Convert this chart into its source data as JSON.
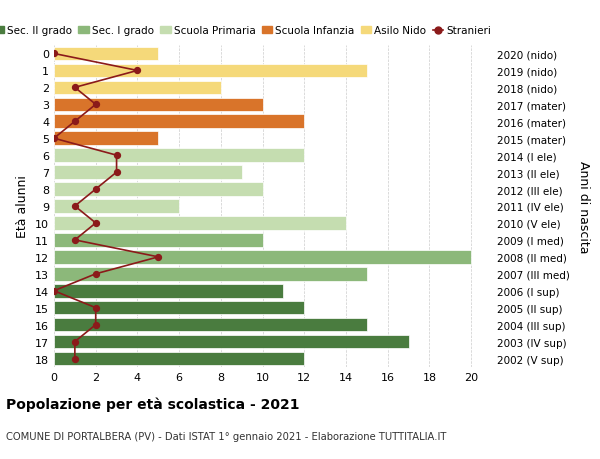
{
  "ages": [
    18,
    17,
    16,
    15,
    14,
    13,
    12,
    11,
    10,
    9,
    8,
    7,
    6,
    5,
    4,
    3,
    2,
    1,
    0
  ],
  "right_labels": [
    "2002 (V sup)",
    "2003 (IV sup)",
    "2004 (III sup)",
    "2005 (II sup)",
    "2006 (I sup)",
    "2007 (III med)",
    "2008 (II med)",
    "2009 (I med)",
    "2010 (V ele)",
    "2011 (IV ele)",
    "2012 (III ele)",
    "2013 (II ele)",
    "2014 (I ele)",
    "2015 (mater)",
    "2016 (mater)",
    "2017 (mater)",
    "2018 (nido)",
    "2019 (nido)",
    "2020 (nido)"
  ],
  "bar_values": [
    12,
    17,
    15,
    12,
    11,
    15,
    20,
    10,
    14,
    6,
    10,
    9,
    12,
    5,
    12,
    10,
    8,
    15,
    5
  ],
  "bar_colors": [
    "#4a7c3f",
    "#4a7c3f",
    "#4a7c3f",
    "#4a7c3f",
    "#4a7c3f",
    "#8cb87a",
    "#8cb87a",
    "#8cb87a",
    "#c5ddb0",
    "#c5ddb0",
    "#c5ddb0",
    "#c5ddb0",
    "#c5ddb0",
    "#d9742a",
    "#d9742a",
    "#d9742a",
    "#f5d97a",
    "#f5d97a",
    "#f5d97a"
  ],
  "stranieri_values": [
    1,
    1,
    2,
    2,
    0,
    2,
    5,
    1,
    2,
    1,
    2,
    3,
    3,
    0,
    1,
    2,
    1,
    4,
    0
  ],
  "legend_labels": [
    "Sec. II grado",
    "Sec. I grado",
    "Scuola Primaria",
    "Scuola Infanzia",
    "Asilo Nido",
    "Stranieri"
  ],
  "legend_colors": [
    "#4a7c3f",
    "#8cb87a",
    "#c5ddb0",
    "#d9742a",
    "#f5d97a",
    "#8b1a1a"
  ],
  "title": "Popolazione per età scolastica - 2021",
  "subtitle": "COMUNE DI PORTALBERA (PV) - Dati ISTAT 1° gennaio 2021 - Elaborazione TUTTITALIA.IT",
  "ylabel_left": "Età alunni",
  "ylabel_right": "Anni di nascita",
  "xlim": [
    0,
    21
  ],
  "bg_color": "#ffffff",
  "grid_color": "#cccccc"
}
